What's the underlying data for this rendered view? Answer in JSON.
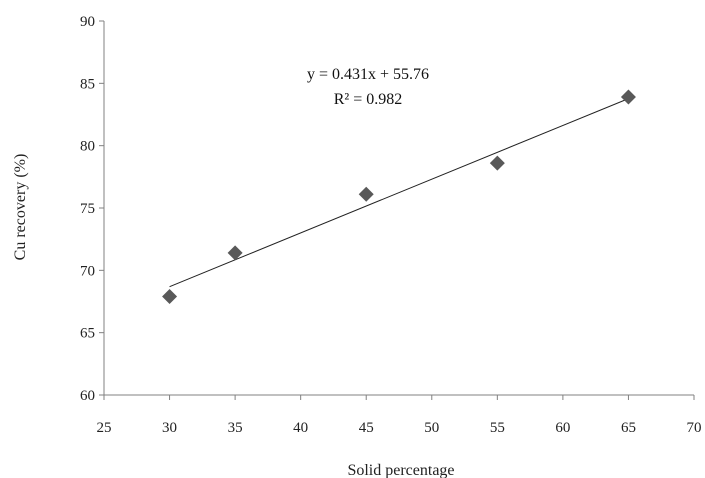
{
  "chart_data": {
    "type": "scatter",
    "xlabel": "Solid percentage",
    "ylabel": "Cu recovery (%)",
    "xlim": [
      25,
      70
    ],
    "ylim": [
      60,
      90
    ],
    "x_ticks": [
      25,
      30,
      35,
      40,
      45,
      50,
      55,
      60,
      65,
      70
    ],
    "y_ticks": [
      60,
      65,
      70,
      75,
      80,
      85,
      90
    ],
    "grid": false,
    "legend": "none",
    "series": [
      {
        "marker": "diamond",
        "color": "#595959",
        "points": [
          {
            "x": 30,
            "y": 67.9
          },
          {
            "x": 35,
            "y": 71.4
          },
          {
            "x": 45,
            "y": 76.1
          },
          {
            "x": 55,
            "y": 78.6
          },
          {
            "x": 65,
            "y": 83.9
          }
        ]
      }
    ],
    "trendline": {
      "type": "linear",
      "slope": 0.431,
      "intercept": 55.76,
      "x_range": [
        30,
        65
      ],
      "color": "#222222"
    },
    "annotations": {
      "equation": "y = 0.431x + 55.76",
      "r_squared": "R² = 0.982"
    }
  }
}
